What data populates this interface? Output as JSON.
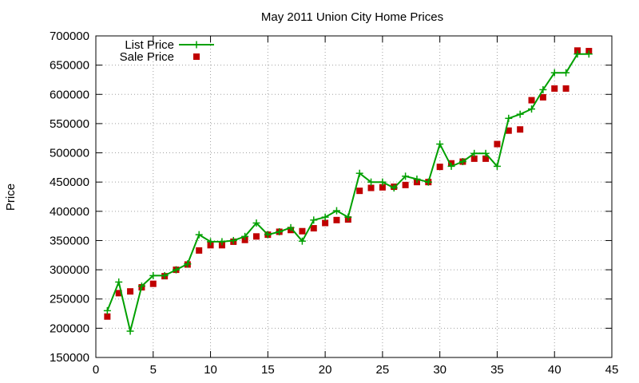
{
  "chart_data": {
    "type": "line",
    "title": "May 2011 Union City Home Prices",
    "xlabel": "",
    "ylabel": "Price",
    "xlim": [
      0,
      45
    ],
    "ylim": [
      150000,
      700000
    ],
    "xticks": [
      0,
      5,
      10,
      15,
      20,
      25,
      30,
      35,
      40,
      45
    ],
    "yticks": [
      150000,
      200000,
      250000,
      300000,
      350000,
      400000,
      450000,
      500000,
      550000,
      600000,
      650000,
      700000
    ],
    "xtick_labels": [
      "0",
      "5",
      "10",
      "15",
      "20",
      "25",
      "30",
      "35",
      "40",
      "45"
    ],
    "ytick_labels": [
      "150000",
      "200000",
      "250000",
      "300000",
      "350000",
      "400000",
      "450000",
      "500000",
      "550000",
      "600000",
      "650000",
      "700000"
    ],
    "grid": true,
    "legend_position": "top-left",
    "x": [
      1,
      2,
      3,
      4,
      5,
      6,
      7,
      8,
      9,
      10,
      11,
      12,
      13,
      14,
      15,
      16,
      17,
      18,
      19,
      20,
      21,
      22,
      23,
      24,
      25,
      26,
      27,
      28,
      29,
      30,
      31,
      32,
      33,
      34,
      35,
      36,
      37,
      38,
      39,
      40,
      41,
      42,
      43
    ],
    "series": [
      {
        "name": "List Price",
        "style": "linespoints",
        "color": "#00a000",
        "marker": "plus",
        "values": [
          230000,
          279000,
          195000,
          272000,
          290000,
          290000,
          300000,
          310000,
          360000,
          348000,
          348000,
          350000,
          357000,
          380000,
          360000,
          365000,
          372000,
          349000,
          385000,
          390000,
          401000,
          390000,
          465000,
          450000,
          450000,
          440000,
          460000,
          455000,
          450000,
          515000,
          477000,
          485000,
          499000,
          499000,
          477000,
          559000,
          566000,
          575000,
          608000,
          637000,
          637000,
          669000,
          669000
        ]
      },
      {
        "name": "Sale Price",
        "style": "points",
        "color": "#c00000",
        "marker": "square",
        "values": [
          220000,
          260000,
          263000,
          270000,
          276000,
          289000,
          300000,
          309000,
          333000,
          342000,
          342000,
          348000,
          351000,
          357000,
          360000,
          365000,
          368000,
          366000,
          371000,
          380000,
          385000,
          386000,
          435000,
          440000,
          441000,
          442000,
          445000,
          450000,
          450000,
          476000,
          482000,
          485000,
          490000,
          490000,
          515000,
          538000,
          540000,
          590000,
          595000,
          610000,
          610000,
          675000,
          674000
        ]
      }
    ]
  }
}
